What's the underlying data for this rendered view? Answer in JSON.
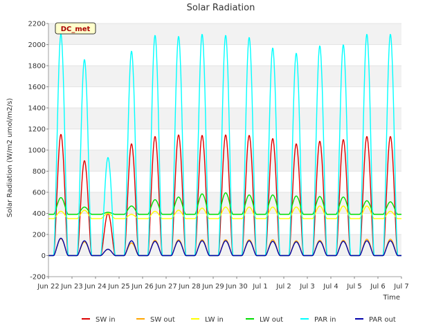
{
  "chart_data": {
    "type": "line",
    "title": "Solar Radiation",
    "xlabel": "Time",
    "ylabel": "Solar Radiation (W/m2 umol/m2/s)",
    "annotation": "DC_met",
    "ylim": [
      -200,
      2200
    ],
    "yticks": [
      -200,
      0,
      200,
      400,
      600,
      800,
      1000,
      1200,
      1400,
      1600,
      1800,
      2000,
      2200
    ],
    "xlim": [
      "2025-06-22",
      "2025-07-07"
    ],
    "xtick_labels": [
      "Jun 22",
      "Jun 23",
      "Jun 24",
      "Jun 25",
      "Jun 26",
      "Jun 27",
      "Jun 28",
      "Jun 29",
      "Jun 30",
      "Jul 1",
      "Jul 2",
      "Jul 3",
      "Jul 4",
      "Jul 5",
      "Jul 6",
      "Jul 7"
    ],
    "grid": true,
    "legend_position": "bottom",
    "days": [
      "2025-06-22",
      "2025-06-23",
      "2025-06-24",
      "2025-06-25",
      "2025-06-26",
      "2025-06-27",
      "2025-06-28",
      "2025-06-29",
      "2025-06-30",
      "2025-07-01",
      "2025-07-02",
      "2025-07-03",
      "2025-07-04",
      "2025-07-05",
      "2025-07-06"
    ],
    "series": [
      {
        "name": "SW in",
        "color": "#dd0000",
        "daily_peak": [
          1150,
          900,
          400,
          1060,
          1130,
          1145,
          1140,
          1145,
          1140,
          1110,
          1060,
          1085,
          1100,
          1130,
          1130
        ],
        "night": 0
      },
      {
        "name": "SW out",
        "color": "#ffa500",
        "daily_peak": [
          160,
          130,
          60,
          120,
          145,
          150,
          150,
          150,
          150,
          150,
          140,
          145,
          145,
          155,
          155
        ],
        "night": 0
      },
      {
        "name": "LW in",
        "color": "#ffff00",
        "daily_peak": [
          420,
          430,
          400,
          390,
          420,
          430,
          450,
          460,
          460,
          460,
          460,
          470,
          470,
          470,
          420
        ],
        "night": 350
      },
      {
        "name": "LW out",
        "color": "#00dd00",
        "daily_peak": [
          550,
          460,
          410,
          470,
          530,
          555,
          585,
          595,
          575,
          575,
          565,
          560,
          555,
          520,
          510
        ],
        "night": 390
      },
      {
        "name": "PAR in",
        "color": "#00ffff",
        "daily_peak": [
          2100,
          1860,
          930,
          1940,
          2090,
          2080,
          2100,
          2090,
          2070,
          1970,
          1920,
          1990,
          2000,
          2100,
          2100
        ],
        "night": 0
      },
      {
        "name": "PAR out",
        "color": "#0000aa",
        "daily_peak": [
          165,
          140,
          60,
          140,
          135,
          140,
          140,
          140,
          140,
          135,
          130,
          135,
          135,
          140,
          140
        ],
        "night": 0
      }
    ]
  }
}
